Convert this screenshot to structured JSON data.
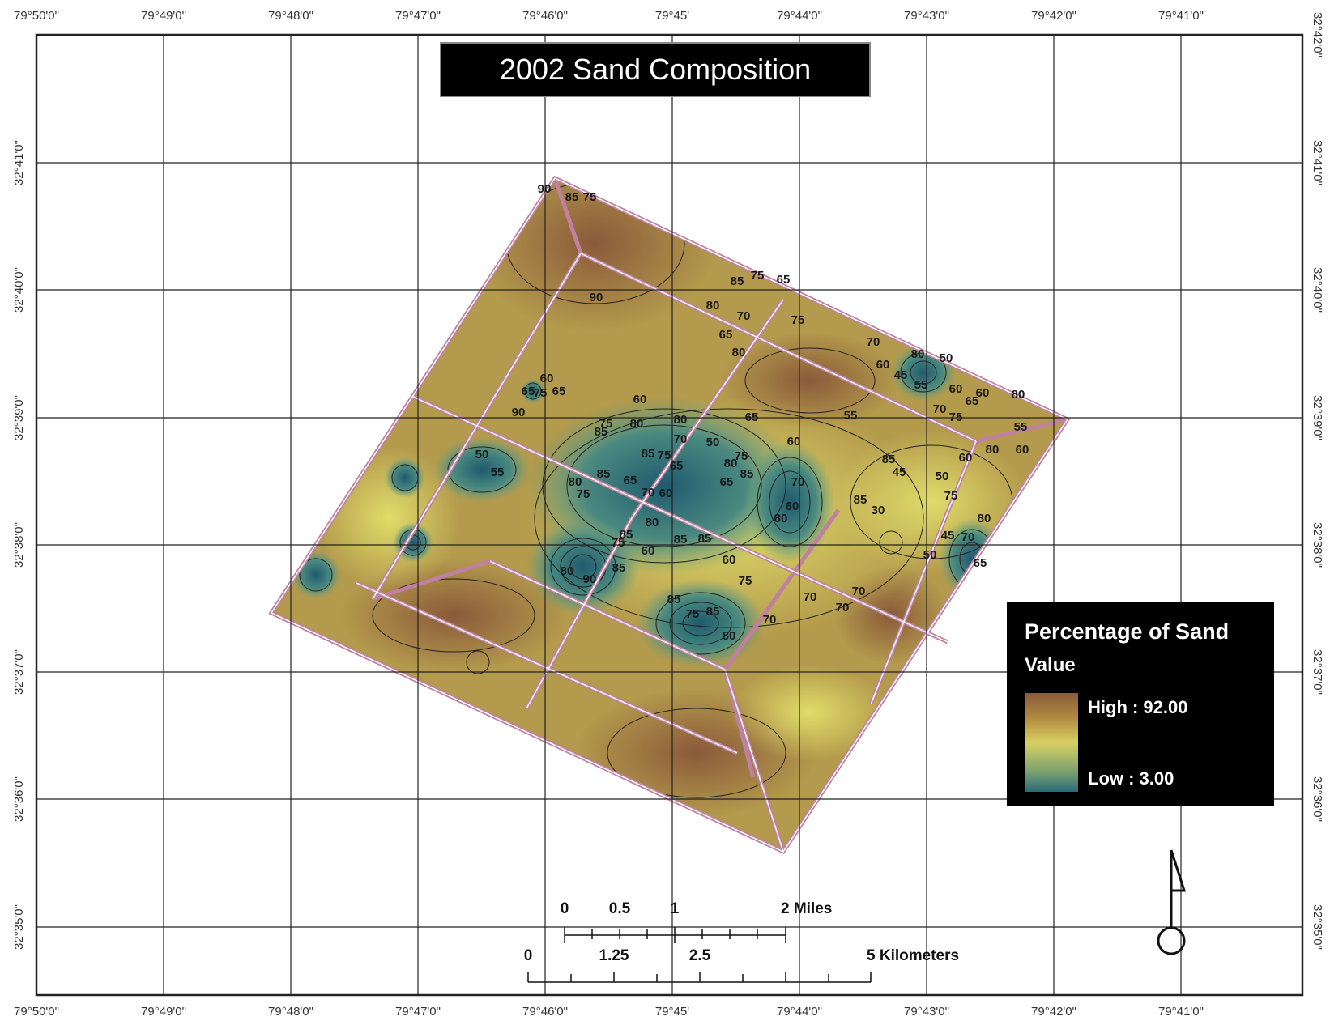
{
  "map": {
    "title": "2002 Sand Composition",
    "longitude_ticks": [
      "79°50'0\"",
      "79°49'0\"",
      "79°48'0\"",
      "79°47'0\"",
      "79°46'0\"",
      "79°45'",
      "79°44'0\"",
      "79°43'0\"",
      "79°42'0\"",
      "79°41'0\""
    ],
    "latitude_ticks_right": [
      "32°42'0\"",
      "32°41'0\"",
      "32°40'0\"",
      "32°39'0\"",
      "32°38'0\"",
      "32°37'0\"",
      "32°36'0\"",
      "32°35'0\""
    ],
    "latitude_ticks_left": [
      "32°41'0\"",
      "32°40'0\"",
      "32°39'0\"",
      "32°38'0\"",
      "32°37'0\"",
      "32°36'0\"",
      "32°35'0\""
    ],
    "colors": {
      "high": "#8a5a3a",
      "mid": "#d8d060",
      "low": "#2a6a7a",
      "grid": "#222222",
      "survey_line": "#c080a0"
    }
  },
  "legend": {
    "title": "Percentage of Sand",
    "subtitle": "Value",
    "high_label": "High : 92.00",
    "low_label": "Low : 3.00"
  },
  "scale_bar": {
    "miles_labels": [
      "0",
      "0.5",
      "1",
      "2 Miles"
    ],
    "km_labels": [
      "0",
      "1.25",
      "2.5",
      "5 Kilometers"
    ]
  },
  "contour_labels": [
    "90",
    "85",
    "75",
    "90",
    "85",
    "75",
    "65",
    "80",
    "70",
    "75",
    "65",
    "80",
    "70",
    "60",
    "80",
    "50",
    "60",
    "65",
    "45",
    "55",
    "60",
    "55",
    "70",
    "75",
    "80",
    "55",
    "60",
    "80",
    "85",
    "60",
    "65",
    "75",
    "90",
    "50",
    "55",
    "65",
    "75",
    "60",
    "80",
    "85",
    "75",
    "70",
    "80",
    "65",
    "50",
    "60",
    "80",
    "75",
    "85",
    "65",
    "65",
    "60",
    "70",
    "60",
    "80",
    "85",
    "30",
    "45",
    "50",
    "75",
    "60",
    "80",
    "70",
    "45",
    "50",
    "65",
    "85",
    "80",
    "85",
    "75",
    "65",
    "70",
    "80",
    "85",
    "60",
    "75",
    "80",
    "90",
    "85",
    "85",
    "85",
    "60",
    "75",
    "85",
    "75",
    "85",
    "80",
    "70",
    "70",
    "70",
    "70",
    "80",
    "80",
    "60"
  ],
  "north_arrow": {
    "icon": "north-arrow-icon"
  }
}
